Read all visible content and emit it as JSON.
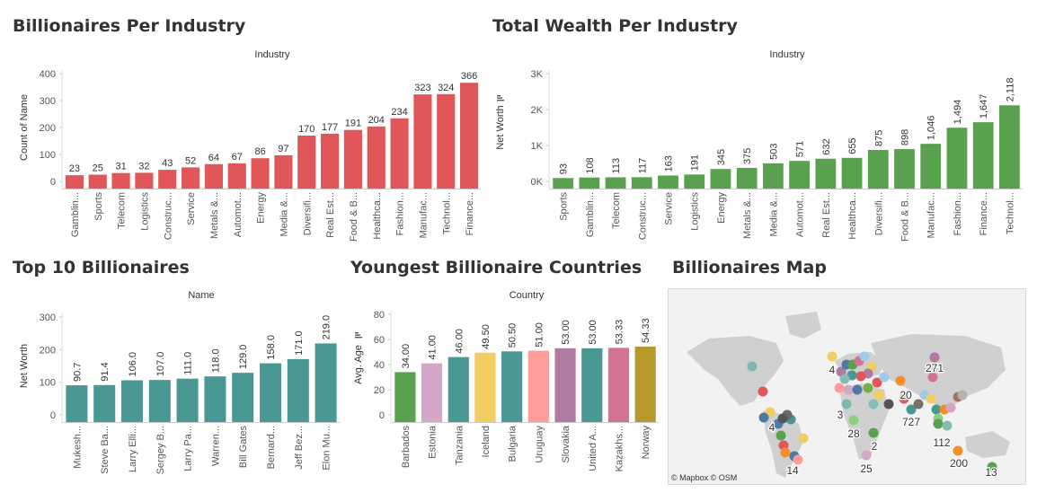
{
  "titles": {
    "industry_count": "Billionaires Per Industry",
    "industry_wealth": "Total Wealth Per Industry",
    "top10": "Top 10 Billionaires",
    "youngest": "Youngest Billionaire Countries",
    "map": "Billionaires Map"
  },
  "map": {
    "attribution": "© Mapbox © OSM",
    "labels": [
      "4",
      "271",
      "20",
      "3",
      "727",
      "28",
      "2",
      "112",
      "25",
      "200",
      "13",
      "4",
      "14"
    ]
  },
  "chart_data": [
    {
      "type": "bar",
      "header": "Industry",
      "ylabel": "Count of Name",
      "ylim": [
        0,
        400
      ],
      "yticks": [
        0,
        100,
        200,
        300,
        400
      ],
      "categories": [
        "Gamblin...",
        "Sports",
        "Telecom",
        "Logistics",
        "Construc...",
        "Service",
        "Metals &...",
        "Automot...",
        "Energy",
        "Media &...",
        "Diversifi...",
        "Real Est...",
        "Food & B...",
        "Healthca...",
        "Fashion...",
        "Manufac...",
        "Technol...",
        "Finance..."
      ],
      "values": [
        23,
        25,
        31,
        32,
        43,
        52,
        64,
        67,
        86,
        97,
        170,
        177,
        191,
        204,
        234,
        323,
        324,
        366
      ],
      "labels": [
        "23",
        "25",
        "31",
        "32",
        "43",
        "52",
        "64",
        "67",
        "86",
        "97",
        "170",
        "177",
        "191",
        "204",
        "234",
        "323",
        "324",
        "366"
      ],
      "color": "#e15759"
    },
    {
      "type": "bar",
      "header": "Industry",
      "ylabel": "Net Worth",
      "ylim": [
        0,
        3000
      ],
      "yticks": [
        0,
        1000,
        2000,
        3000
      ],
      "yticklabels": [
        "0K",
        "1K",
        "2K",
        "3K"
      ],
      "categories": [
        "Sports",
        "Gamblin...",
        "Telecom",
        "Construc...",
        "Service",
        "Logistics",
        "Energy",
        "Metals &...",
        "Media &...",
        "Automot...",
        "Real Est...",
        "Healthca...",
        "Diversifi...",
        "Food & B...",
        "Manufac...",
        "Fashion...",
        "Finance...",
        "Technol..."
      ],
      "values": [
        93,
        108,
        113,
        117,
        163,
        191,
        345,
        375,
        503,
        571,
        632,
        655,
        875,
        898,
        1046,
        1494,
        1647,
        2118
      ],
      "labels": [
        "93",
        "108",
        "113",
        "117",
        "163",
        "191",
        "345",
        "375",
        "503",
        "571",
        "632",
        "655",
        "875",
        "898",
        "1,046",
        "1,494",
        "1,647",
        "2,118"
      ],
      "color": "#59a14f"
    },
    {
      "type": "bar",
      "header": "Name",
      "ylabel": "Net Worth",
      "ylim": [
        0,
        300
      ],
      "yticks": [
        0,
        100,
        200,
        300
      ],
      "categories": [
        "Mukesh...",
        "Steve Ba...",
        "Larry Elli...",
        "Sergey B...",
        "Larry Pa...",
        "Warren...",
        "Bill Gates",
        "Bernard...",
        "Jeff Bez...",
        "Elon Mu..."
      ],
      "values": [
        90.7,
        91.4,
        106.0,
        107.0,
        111.0,
        118.0,
        129.0,
        158.0,
        171.0,
        219.0
      ],
      "labels": [
        "90.7",
        "91.4",
        "106.0",
        "107.0",
        "111.0",
        "118.0",
        "129.0",
        "158.0",
        "171.0",
        "219.0"
      ],
      "color": "#499894"
    },
    {
      "type": "bar",
      "header": "Country",
      "ylabel": "Avg. Age",
      "ylim": [
        0,
        80
      ],
      "yticks": [
        0,
        20,
        40,
        60,
        80
      ],
      "categories": [
        "Barbados",
        "Estonia",
        "Tanzania",
        "Iceland",
        "Bulgaria",
        "Uruguay",
        "Slovakia",
        "United A...",
        "Kazakhs...",
        "Norway"
      ],
      "values": [
        34.0,
        41.0,
        46.0,
        49.5,
        50.5,
        51.0,
        53.0,
        53.0,
        53.33,
        54.33
      ],
      "labels": [
        "34.00",
        "41.00",
        "46.00",
        "49.50",
        "50.50",
        "51.00",
        "53.00",
        "53.00",
        "53.33",
        "54.33"
      ],
      "colors": [
        "#59a14f",
        "#d4a6c8",
        "#499894",
        "#f1ce63",
        "#499894",
        "#ff9d9a",
        "#b07aa1",
        "#499894",
        "#d37295",
        "#b6992d"
      ]
    }
  ]
}
